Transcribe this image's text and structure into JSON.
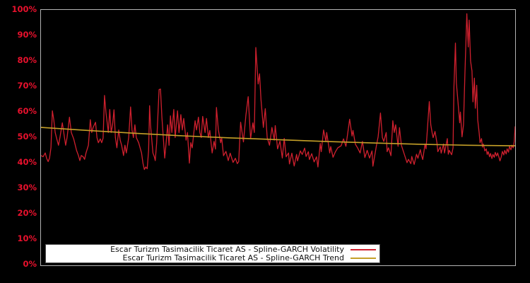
{
  "window": {
    "background": "#000000"
  },
  "axis": {
    "tick_label_color": "#e8112d",
    "plot_border_color": "#b3b3b3"
  },
  "legend": {
    "background": "#ffffff",
    "border_color": "#4d4d4d",
    "text_color": "#111111"
  },
  "chart_data": {
    "type": "line",
    "title": "",
    "xlabel": "",
    "ylabel": "",
    "ylim": [
      0,
      100
    ],
    "yticks": [
      "100%",
      "90%",
      "80%",
      "70%",
      "60%",
      "50%",
      "40%",
      "30%",
      "20%",
      "10%",
      "0%"
    ],
    "x_axis_labels": "none",
    "x_units": "percent-of-plot-width",
    "grid": false,
    "legend_position": "bottom-inside",
    "series": [
      {
        "name": "Escar Turizm Tasimacilik Ticaret AS - Spline-GARCH Volatility",
        "key": "volatility-line",
        "color": "#cf202e",
        "width": 1.3,
        "points": [
          [
            0,
            43
          ],
          [
            0.45,
            42.5
          ],
          [
            0.9,
            44
          ],
          [
            1.2,
            41.8
          ],
          [
            1.5,
            40.6
          ],
          [
            1.8,
            42
          ],
          [
            2.1,
            46
          ],
          [
            2.4,
            60.5
          ],
          [
            2.7,
            57
          ],
          [
            3,
            52
          ],
          [
            3.4,
            49
          ],
          [
            3.7,
            47
          ],
          [
            4,
            50
          ],
          [
            4.5,
            55.8
          ],
          [
            4.8,
            52
          ],
          [
            5.2,
            47
          ],
          [
            5.5,
            50
          ],
          [
            6,
            58
          ],
          [
            6.4,
            52
          ],
          [
            6.9,
            49.5
          ],
          [
            7.5,
            45
          ],
          [
            7.9,
            43
          ],
          [
            8.2,
            41
          ],
          [
            8.5,
            43
          ],
          [
            8.9,
            42.5
          ],
          [
            9.2,
            41.5
          ],
          [
            9.5,
            44
          ],
          [
            10,
            47
          ],
          [
            10.4,
            57
          ],
          [
            10.7,
            52
          ],
          [
            11,
            54
          ],
          [
            11.5,
            56
          ],
          [
            11.8,
            50
          ],
          [
            12.1,
            48
          ],
          [
            12.5,
            49.5
          ],
          [
            12.8,
            48
          ],
          [
            13.1,
            49.8
          ],
          [
            13.4,
            66.5
          ],
          [
            13.7,
            60
          ],
          [
            14.2,
            52
          ],
          [
            14.5,
            61
          ],
          [
            14.8,
            52
          ],
          [
            15.1,
            55
          ],
          [
            15.4,
            60.9
          ],
          [
            15.7,
            50
          ],
          [
            16,
            46
          ],
          [
            16.4,
            53
          ],
          [
            16.7,
            49
          ],
          [
            17,
            47
          ],
          [
            17.4,
            43
          ],
          [
            17.7,
            47
          ],
          [
            18,
            44
          ],
          [
            18.5,
            50
          ],
          [
            18.9,
            62
          ],
          [
            19.2,
            53
          ],
          [
            19.5,
            50
          ],
          [
            19.8,
            55
          ],
          [
            20.1,
            50
          ],
          [
            20.6,
            48
          ],
          [
            21.2,
            44
          ],
          [
            21.5,
            40
          ],
          [
            21.8,
            37.5
          ],
          [
            22.1,
            38.5
          ],
          [
            22.4,
            37.8
          ],
          [
            22.7,
            45
          ],
          [
            22.9,
            62.5
          ],
          [
            23.1,
            55
          ],
          [
            23.6,
            44
          ],
          [
            23.9,
            42.5
          ],
          [
            24.1,
            41
          ],
          [
            24.4,
            48
          ],
          [
            24.9,
            68.8
          ],
          [
            25.2,
            69
          ],
          [
            25.5,
            58
          ],
          [
            25.8,
            50
          ],
          [
            26.1,
            42
          ],
          [
            26.4,
            48
          ],
          [
            26.7,
            55
          ],
          [
            27,
            47
          ],
          [
            27.3,
            58.5
          ],
          [
            27.6,
            52
          ],
          [
            28,
            61
          ],
          [
            28.3,
            50
          ],
          [
            28.8,
            60.5
          ],
          [
            29.1,
            52
          ],
          [
            29.5,
            59
          ],
          [
            29.8,
            53
          ],
          [
            30.1,
            57.5
          ],
          [
            30.6,
            49
          ],
          [
            30.9,
            52
          ],
          [
            31.3,
            40
          ],
          [
            31.6,
            48
          ],
          [
            31.9,
            46
          ],
          [
            32.5,
            56.6
          ],
          [
            32.8,
            53
          ],
          [
            33.2,
            58
          ],
          [
            33.5,
            52
          ],
          [
            33.8,
            50
          ],
          [
            34.1,
            58.3
          ],
          [
            34.6,
            52
          ],
          [
            34.9,
            57.5
          ],
          [
            35.3,
            50
          ],
          [
            35.6,
            52.8
          ],
          [
            36.1,
            44
          ],
          [
            36.5,
            48.5
          ],
          [
            36.8,
            45.5
          ],
          [
            37,
            61.8
          ],
          [
            37.4,
            53
          ],
          [
            37.9,
            48
          ],
          [
            38.1,
            50
          ],
          [
            38.5,
            42.9
          ],
          [
            39,
            44.6
          ],
          [
            39.5,
            41
          ],
          [
            39.9,
            43.9
          ],
          [
            40.5,
            40.3
          ],
          [
            41,
            41.9
          ],
          [
            41.4,
            39.8
          ],
          [
            41.7,
            40.6
          ],
          [
            42.1,
            56
          ],
          [
            42.7,
            48.3
          ],
          [
            43.2,
            58.6
          ],
          [
            43.7,
            66
          ],
          [
            44.2,
            49.6
          ],
          [
            44.7,
            55.8
          ],
          [
            45,
            52
          ],
          [
            45.3,
            85.3
          ],
          [
            45.8,
            71
          ],
          [
            46.1,
            75
          ],
          [
            46.4,
            65
          ],
          [
            46.7,
            58
          ],
          [
            46.9,
            54
          ],
          [
            47.3,
            61.3
          ],
          [
            47.7,
            50
          ],
          [
            48.2,
            47
          ],
          [
            48.7,
            54
          ],
          [
            49.2,
            49
          ],
          [
            49.4,
            54.7
          ],
          [
            49.9,
            45.6
          ],
          [
            50.4,
            48.6
          ],
          [
            50.9,
            42
          ],
          [
            51.3,
            49.7
          ],
          [
            51.7,
            42.5
          ],
          [
            52.2,
            44
          ],
          [
            52.4,
            39.7
          ],
          [
            52.9,
            43.9
          ],
          [
            53.4,
            38.9
          ],
          [
            53.9,
            43.4
          ],
          [
            54.1,
            40.9
          ],
          [
            54.7,
            44.8
          ],
          [
            55.1,
            43.4
          ],
          [
            55.6,
            45.9
          ],
          [
            55.9,
            42.6
          ],
          [
            56.4,
            44.5
          ],
          [
            56.6,
            41.4
          ],
          [
            57.1,
            43.7
          ],
          [
            57.6,
            40.5
          ],
          [
            58.1,
            42.5
          ],
          [
            58.4,
            38.5
          ],
          [
            58.9,
            47.7
          ],
          [
            59.1,
            44.5
          ],
          [
            59.6,
            53
          ],
          [
            60.1,
            48.4
          ],
          [
            60.25,
            52
          ],
          [
            60.9,
            44
          ],
          [
            61.1,
            46.5
          ],
          [
            61.6,
            42.3
          ],
          [
            62.1,
            44.5
          ],
          [
            62.6,
            46
          ],
          [
            63.3,
            46.8
          ],
          [
            63.8,
            49.5
          ],
          [
            64.3,
            46.6
          ],
          [
            65.1,
            57.2
          ],
          [
            65.6,
            50.6
          ],
          [
            65.8,
            52.8
          ],
          [
            66.3,
            47.4
          ],
          [
            66.8,
            45.9
          ],
          [
            67.3,
            44
          ],
          [
            67.8,
            48.5
          ],
          [
            68.3,
            42.2
          ],
          [
            68.8,
            45
          ],
          [
            69.3,
            42
          ],
          [
            69.8,
            44.8
          ],
          [
            70,
            38.8
          ],
          [
            70.8,
            47.5
          ],
          [
            71.1,
            50.3
          ],
          [
            71.6,
            59.6
          ],
          [
            72,
            50
          ],
          [
            72.3,
            48.5
          ],
          [
            72.8,
            52
          ],
          [
            73,
            44.5
          ],
          [
            73.3,
            46
          ],
          [
            73.8,
            42.9
          ],
          [
            74.2,
            56.6
          ],
          [
            74.5,
            52
          ],
          [
            74.8,
            55
          ],
          [
            75.3,
            46.6
          ],
          [
            75.6,
            53.9
          ],
          [
            76,
            47
          ],
          [
            76.5,
            44.2
          ],
          [
            77.2,
            40.2
          ],
          [
            77.5,
            41.5
          ],
          [
            78,
            39.8
          ],
          [
            78.2,
            42.6
          ],
          [
            78.7,
            39.5
          ],
          [
            79.2,
            43.5
          ],
          [
            79.5,
            41.9
          ],
          [
            80,
            45.3
          ],
          [
            80.2,
            43.4
          ],
          [
            80.5,
            41.4
          ],
          [
            81,
            47.5
          ],
          [
            81.2,
            45.6
          ],
          [
            81.9,
            64.1
          ],
          [
            82.2,
            55
          ],
          [
            82.5,
            51.8
          ],
          [
            82.7,
            50
          ],
          [
            83.1,
            52.4
          ],
          [
            83.5,
            48
          ],
          [
            83.7,
            44.5
          ],
          [
            84.2,
            46.4
          ],
          [
            84.4,
            43.9
          ],
          [
            84.9,
            47.5
          ],
          [
            85.1,
            44
          ],
          [
            85.7,
            49.6
          ],
          [
            85.9,
            43.5
          ],
          [
            86.1,
            45
          ],
          [
            86.6,
            43.3
          ],
          [
            86.9,
            46
          ],
          [
            87.1,
            70
          ],
          [
            87.4,
            87
          ],
          [
            87.6,
            71.4
          ],
          [
            87.9,
            65
          ],
          [
            88.3,
            55.8
          ],
          [
            88.45,
            60
          ],
          [
            88.8,
            50.3
          ],
          [
            89.1,
            55
          ],
          [
            89.4,
            75
          ],
          [
            89.8,
            98.5
          ],
          [
            90.1,
            85.5
          ],
          [
            90.3,
            96
          ],
          [
            90.6,
            80
          ],
          [
            90.9,
            76.1
          ],
          [
            91.1,
            64
          ],
          [
            91.4,
            73.3
          ],
          [
            91.6,
            61.5
          ],
          [
            91.9,
            70.5
          ],
          [
            92.1,
            57
          ],
          [
            92.4,
            52
          ],
          [
            92.6,
            48
          ],
          [
            92.9,
            49.6
          ],
          [
            93.1,
            46.3
          ],
          [
            93.3,
            47.5
          ],
          [
            93.6,
            44.8
          ],
          [
            93.9,
            45.6
          ],
          [
            94.1,
            43.4
          ],
          [
            94.3,
            44.5
          ],
          [
            94.6,
            42.5
          ],
          [
            94.8,
            43.8
          ],
          [
            95.1,
            41.8
          ],
          [
            95.3,
            43.4
          ],
          [
            95.6,
            42.3
          ],
          [
            95.8,
            44.2
          ],
          [
            96.1,
            42.8
          ],
          [
            96.3,
            44
          ],
          [
            96.6,
            42.2
          ],
          [
            96.8,
            40.9
          ],
          [
            97.1,
            42.6
          ],
          [
            97.3,
            44.6
          ],
          [
            97.6,
            43.2
          ],
          [
            97.8,
            45
          ],
          [
            98.1,
            43.6
          ],
          [
            98.3,
            45.6
          ],
          [
            98.6,
            44.3
          ],
          [
            98.8,
            46.6
          ],
          [
            99.1,
            45.2
          ],
          [
            99.3,
            47
          ],
          [
            99.6,
            46
          ],
          [
            99.8,
            48.5
          ],
          [
            100,
            54.4
          ]
        ]
      },
      {
        "name": "Escar Turizm Tasimacilik Ticaret AS - Spline-GARCH Trend",
        "key": "trend-line",
        "color": "#c5a028",
        "width": 1.6,
        "points": [
          [
            0,
            54
          ],
          [
            10,
            52.8
          ],
          [
            20,
            51.7
          ],
          [
            30,
            50.7
          ],
          [
            40,
            49.9
          ],
          [
            50,
            49.2
          ],
          [
            60,
            48.5
          ],
          [
            70,
            47.9
          ],
          [
            80,
            47.4
          ],
          [
            90,
            47
          ],
          [
            100,
            46.8
          ]
        ]
      }
    ]
  }
}
